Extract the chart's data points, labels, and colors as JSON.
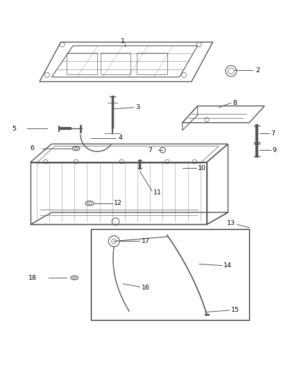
{
  "bg_color": "#ffffff",
  "line_color": "#555555",
  "label_color": "#000000",
  "fig_width": 4.38,
  "fig_height": 5.33,
  "dpi": 100
}
